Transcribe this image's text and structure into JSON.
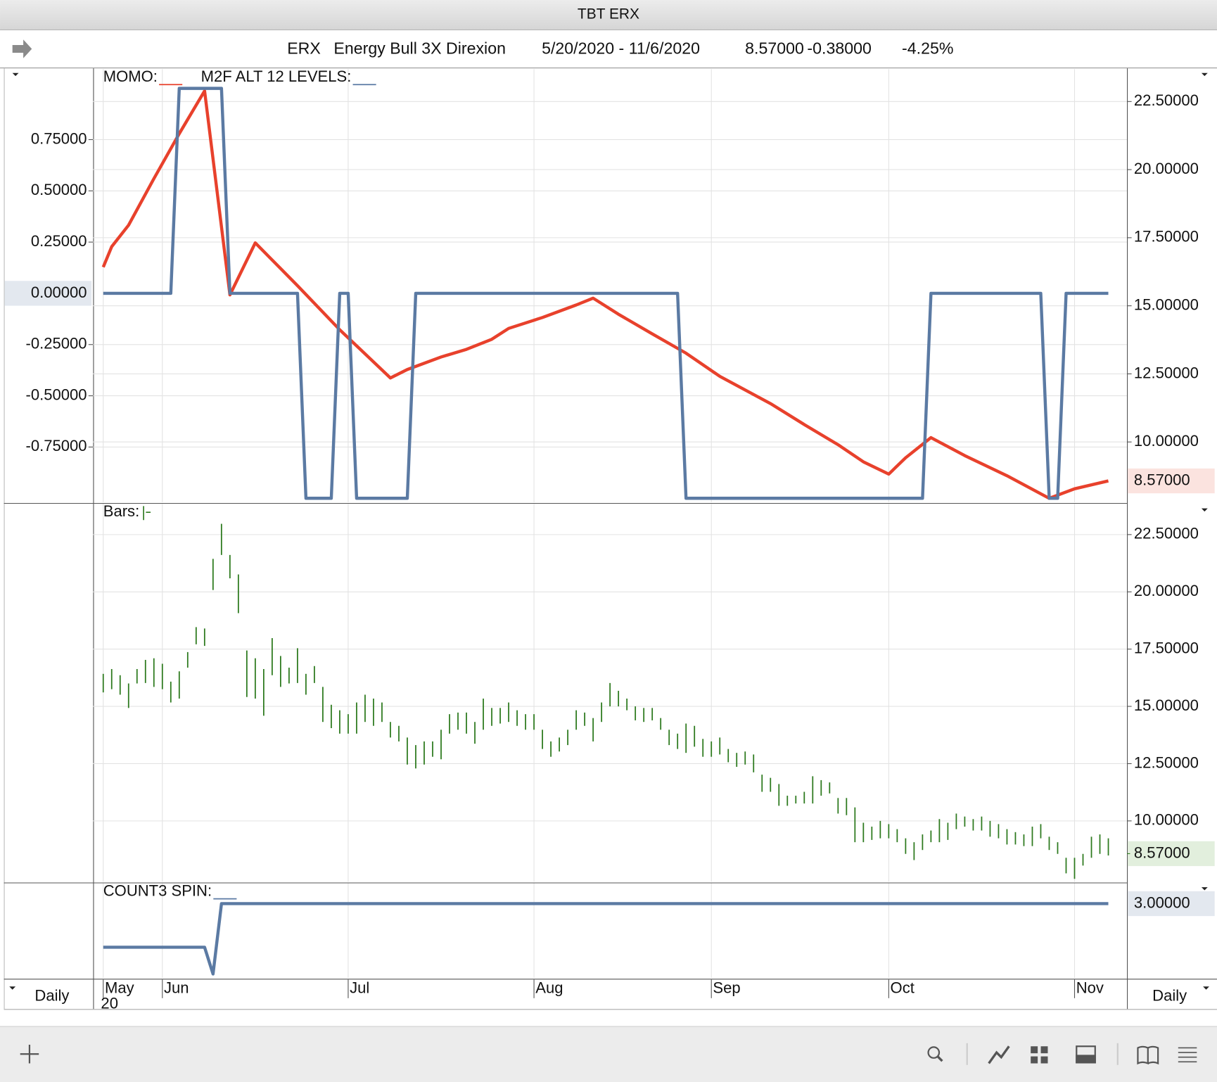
{
  "window_title": "TBT ERX",
  "header": {
    "symbol": "ERX",
    "name": "Energy Bull 3X Direxion",
    "date_range": "5/20/2020 - 11/6/2020",
    "last": "8.57000",
    "change": "-0.38000",
    "change_pct": "-4.25%"
  },
  "period_labels": [
    "Daily",
    "Daily"
  ],
  "x_axis": {
    "xlim": [
      0,
      119
    ],
    "xticks": [
      {
        "value": 0,
        "label": "May"
      },
      {
        "value": 7,
        "label": "Jun"
      },
      {
        "value": 29,
        "label": "Jul"
      },
      {
        "value": 51,
        "label": "Aug"
      },
      {
        "value": 72,
        "label": "Sep"
      },
      {
        "value": 93,
        "label": "Oct"
      },
      {
        "value": 115,
        "label": "Nov"
      }
    ],
    "year_label": "20"
  },
  "chart_data": [
    {
      "type": "line",
      "ylim": [
        -1.023,
        1.098
      ],
      "yticks": [
        {
          "value": 0.75,
          "label": "0.75000"
        },
        {
          "value": 0.5,
          "label": "0.50000"
        },
        {
          "value": 0.25,
          "label": "0.25000"
        },
        {
          "value": -0.25,
          "label": "-0.25000"
        },
        {
          "value": -0.5,
          "label": "-0.50000"
        },
        {
          "value": -0.75,
          "label": "-0.75000"
        }
      ],
      "y2lim": [
        7.76,
        23.72
      ],
      "y2ticks": [
        {
          "value": 22.5,
          "label": "22.50000"
        },
        {
          "value": 20,
          "label": "20.00000"
        },
        {
          "value": 17.5,
          "label": "17.50000"
        },
        {
          "value": 15,
          "label": "15.00000"
        },
        {
          "value": 12.5,
          "label": "12.50000"
        },
        {
          "value": 10,
          "label": "10.00000"
        }
      ],
      "series": [
        {
          "name": "MOMO:",
          "color": "#e8412c",
          "axis": "y2",
          "last_label": "8.57000",
          "x": [
            0,
            1,
            3,
            6,
            9,
            12,
            15,
            18,
            23,
            28,
            34,
            36,
            40,
            43,
            46,
            48,
            52,
            56,
            58,
            61,
            65,
            69,
            73,
            79,
            83,
            87,
            90,
            93,
            95,
            98,
            102,
            107,
            112,
            115,
            119
          ],
          "values": [
            16.42,
            17.17,
            17.96,
            19.67,
            21.32,
            22.89,
            15.4,
            17.31,
            15.74,
            14.12,
            12.35,
            12.66,
            13.12,
            13.4,
            13.77,
            14.17,
            14.57,
            15.03,
            15.28,
            14.69,
            13.97,
            13.26,
            12.41,
            11.41,
            10.64,
            9.9,
            9.27,
            8.82,
            9.42,
            10.16,
            9.5,
            8.76,
            7.93,
            8.28,
            8.57
          ]
        },
        {
          "name": "M2F ALT 12 LEVELS:",
          "color": "#5b7aa3",
          "last_label": "0.00000",
          "x": [
            0,
            8,
            9,
            14,
            15,
            23,
            24,
            27,
            28,
            29,
            30,
            36,
            37,
            68,
            69,
            97,
            98,
            111,
            112,
            113,
            114,
            119
          ],
          "values": [
            0,
            0,
            1,
            1,
            0,
            0,
            -1,
            -1,
            0,
            0,
            -1,
            -1,
            0,
            0,
            -1,
            -1,
            0,
            0,
            -1,
            -1,
            0,
            0
          ]
        }
      ]
    },
    {
      "type": "bars",
      "title": "Bars:",
      "color": "#2d7a1e",
      "y2lim": [
        7.31,
        23.88
      ],
      "y2ticks": [
        {
          "value": 22.5,
          "label": "22.50000"
        },
        {
          "value": 20,
          "label": "20.00000"
        },
        {
          "value": 17.5,
          "label": "17.50000"
        },
        {
          "value": 15,
          "label": "15.00000"
        },
        {
          "value": 12.5,
          "label": "12.50000"
        },
        {
          "value": 10,
          "label": "10.00000"
        }
      ],
      "last": {
        "value": 8.57,
        "label": "8.57000"
      },
      "high": [
        16.42,
        16.63,
        16.36,
        16.0,
        16.63,
        17.03,
        17.1,
        16.86,
        16.08,
        16.53,
        17.37,
        18.46,
        18.4,
        21.44,
        22.97,
        21.61,
        20.76,
        17.44,
        17.1,
        16.63,
        17.98,
        17.2,
        16.69,
        17.54,
        16.42,
        16.76,
        15.85,
        15.07,
        14.83,
        14.66,
        15.17,
        15.51,
        15.34,
        15.17,
        14.32,
        14.15,
        13.64,
        13.31,
        13.47,
        13.47,
        13.98,
        14.66,
        14.73,
        14.73,
        14.32,
        15.34,
        14.93,
        14.93,
        15.17,
        14.83,
        14.66,
        14.66,
        13.98,
        13.47,
        13.64,
        13.98,
        14.83,
        14.73,
        14.49,
        15.17,
        16.02,
        15.68,
        15.34,
        15.0,
        14.93,
        14.93,
        14.49,
        13.98,
        13.81,
        14.25,
        14.15,
        13.58,
        13.47,
        13.64,
        13.14,
        12.97,
        13.03,
        12.9,
        12.02,
        11.88,
        11.61,
        11.1,
        11.1,
        11.27,
        11.95,
        11.78,
        11.68,
        11.0,
        11.0,
        10.59,
        9.92,
        9.75,
        10.0,
        9.86,
        9.64,
        9.24,
        9.07,
        9.41,
        9.58,
        10.08,
        9.92,
        10.32,
        10.19,
        10.08,
        10.19,
        10.0,
        9.86,
        9.64,
        9.51,
        9.41,
        9.75,
        9.86,
        9.31,
        9.07,
        8.39,
        8.39,
        8.56,
        9.31,
        9.41,
        9.24
      ],
      "low": [
        15.61,
        15.75,
        15.51,
        14.93,
        16.0,
        16.02,
        15.85,
        15.75,
        15.17,
        15.34,
        16.69,
        17.71,
        17.64,
        20.08,
        21.61,
        20.59,
        19.07,
        15.41,
        15.34,
        14.59,
        16.36,
        15.85,
        16.0,
        16.02,
        15.51,
        16.02,
        14.32,
        14.05,
        13.81,
        13.81,
        13.81,
        14.32,
        14.15,
        14.32,
        13.64,
        13.47,
        12.46,
        12.29,
        12.46,
        12.8,
        12.69,
        13.81,
        13.98,
        13.81,
        13.37,
        13.98,
        14.15,
        14.25,
        14.32,
        14.15,
        13.98,
        13.98,
        13.14,
        12.8,
        13.03,
        13.31,
        13.98,
        14.15,
        13.47,
        14.32,
        15.0,
        15.0,
        14.83,
        14.39,
        14.32,
        14.39,
        13.98,
        13.31,
        13.14,
        12.97,
        13.24,
        12.8,
        12.8,
        12.9,
        12.56,
        12.36,
        12.46,
        12.12,
        11.27,
        11.27,
        10.66,
        10.66,
        10.76,
        10.76,
        10.76,
        11.1,
        11.2,
        10.32,
        10.25,
        9.07,
        9.07,
        9.17,
        9.24,
        9.24,
        9.07,
        8.56,
        8.29,
        8.73,
        9.07,
        9.07,
        9.17,
        9.64,
        9.75,
        9.58,
        9.58,
        9.31,
        9.24,
        8.97,
        8.97,
        8.9,
        8.9,
        9.24,
        8.73,
        8.56,
        7.71,
        7.47,
        8.05,
        8.39,
        8.56,
        8.49
      ]
    },
    {
      "type": "line",
      "y2lim": [
        0.33,
        3.75
      ],
      "series": [
        {
          "name": "COUNT3 SPIN:",
          "color": "#5b7aa3",
          "axis": "y2",
          "last_label": "3.00000",
          "x": [
            0,
            12,
            13,
            14,
            119
          ],
          "values": [
            1.45,
            1.45,
            0.5,
            3,
            3
          ]
        }
      ]
    }
  ]
}
